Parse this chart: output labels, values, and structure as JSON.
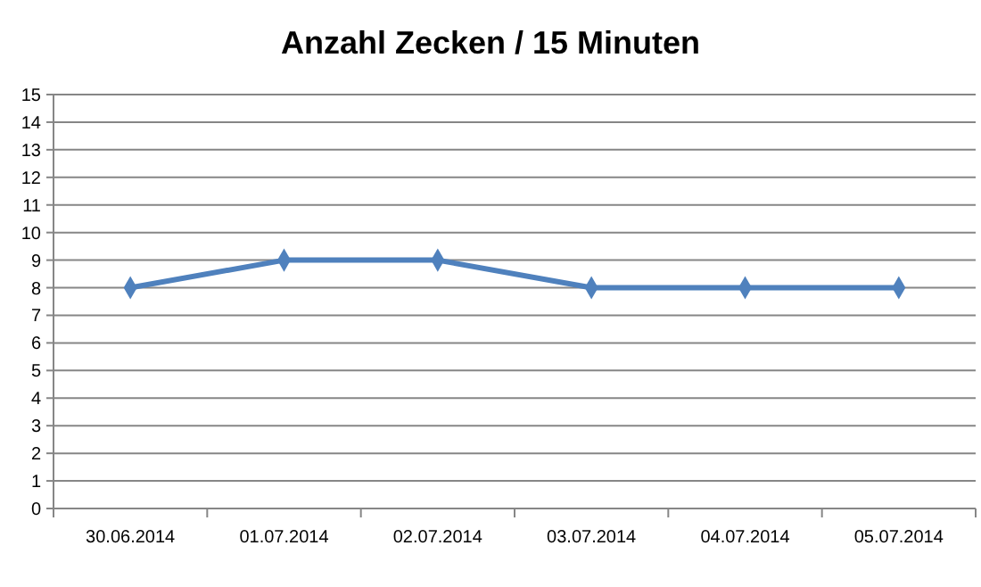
{
  "chart_data": {
    "type": "line",
    "title": "Anzahl Zecken / 15 Minuten",
    "categories": [
      "30.06.2014",
      "01.07.2014",
      "02.07.2014",
      "03.07.2014",
      "04.07.2014",
      "05.07.2014"
    ],
    "series": [
      {
        "color": "#4f81bd",
        "values": [
          8,
          9,
          9,
          8,
          8,
          8
        ]
      }
    ],
    "ylim": [
      0,
      15
    ],
    "yticks": [
      0,
      1,
      2,
      3,
      4,
      5,
      6,
      7,
      8,
      9,
      10,
      11,
      12,
      13,
      14,
      15
    ],
    "grid": "y",
    "marker": "diamond",
    "line_style": "solid"
  }
}
